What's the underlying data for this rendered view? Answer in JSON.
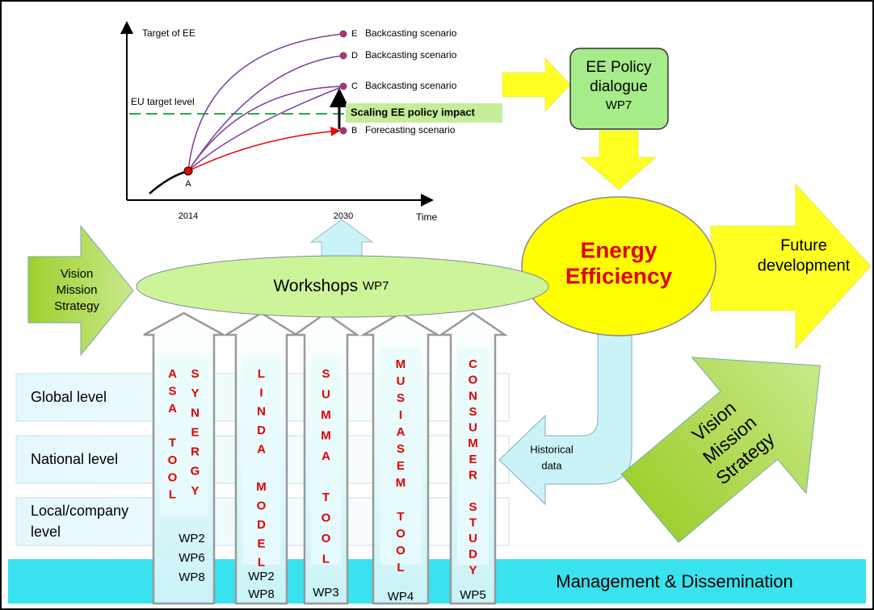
{
  "inset": {
    "y_label": "Target of EE",
    "eu_label": "EU target level",
    "x_ticks": [
      "2014",
      "2030"
    ],
    "x_label": "Time",
    "points": [
      {
        "label": "A"
      },
      {
        "label": "B",
        "scenario": "Forecasting scenario"
      },
      {
        "label": "C",
        "scenario": "Backcasting scenario"
      },
      {
        "label": "D",
        "scenario": "Backcasting scenario"
      },
      {
        "label": "E",
        "scenario": "Backcasting scenario"
      }
    ],
    "impact": "Scaling EE policy impact"
  },
  "policy": {
    "lines": [
      "EE Policy",
      "dialogue"
    ],
    "wp": "WP7"
  },
  "core": {
    "lines": [
      "Energy",
      "Efficiency"
    ]
  },
  "future": {
    "lines": [
      "Future",
      "development"
    ]
  },
  "vision_left": {
    "lines": [
      "Vision",
      "Mission",
      "Strategy"
    ]
  },
  "vision_right": {
    "lines": [
      "Vision",
      "Mission",
      "Strategy"
    ]
  },
  "workshops": {
    "label": "Workshops",
    "wp": "WP7"
  },
  "levels": [
    {
      "lines": [
        "Global level"
      ]
    },
    {
      "lines": [
        "National level"
      ]
    },
    {
      "lines": [
        "Local/company",
        "level"
      ]
    }
  ],
  "tools": [
    {
      "names": [
        "ASA TOOL",
        "SYNERGY"
      ],
      "wps": [
        "WP2",
        "WP6",
        "WP8"
      ]
    },
    {
      "names": [
        "LINDA MODEL"
      ],
      "wps": [
        "WP2",
        "WP8"
      ]
    },
    {
      "names": [
        "SUMMA TOOL"
      ],
      "wps": [
        "WP3"
      ]
    },
    {
      "names": [
        "MUSIASEM TOOL"
      ],
      "wps": [
        "WP4"
      ]
    },
    {
      "names": [
        "CONSUMER STUDY"
      ],
      "wps": [
        "WP5"
      ]
    }
  ],
  "history": {
    "lines": [
      "Historical",
      "data"
    ]
  },
  "footer": "Management & Dissemination"
}
